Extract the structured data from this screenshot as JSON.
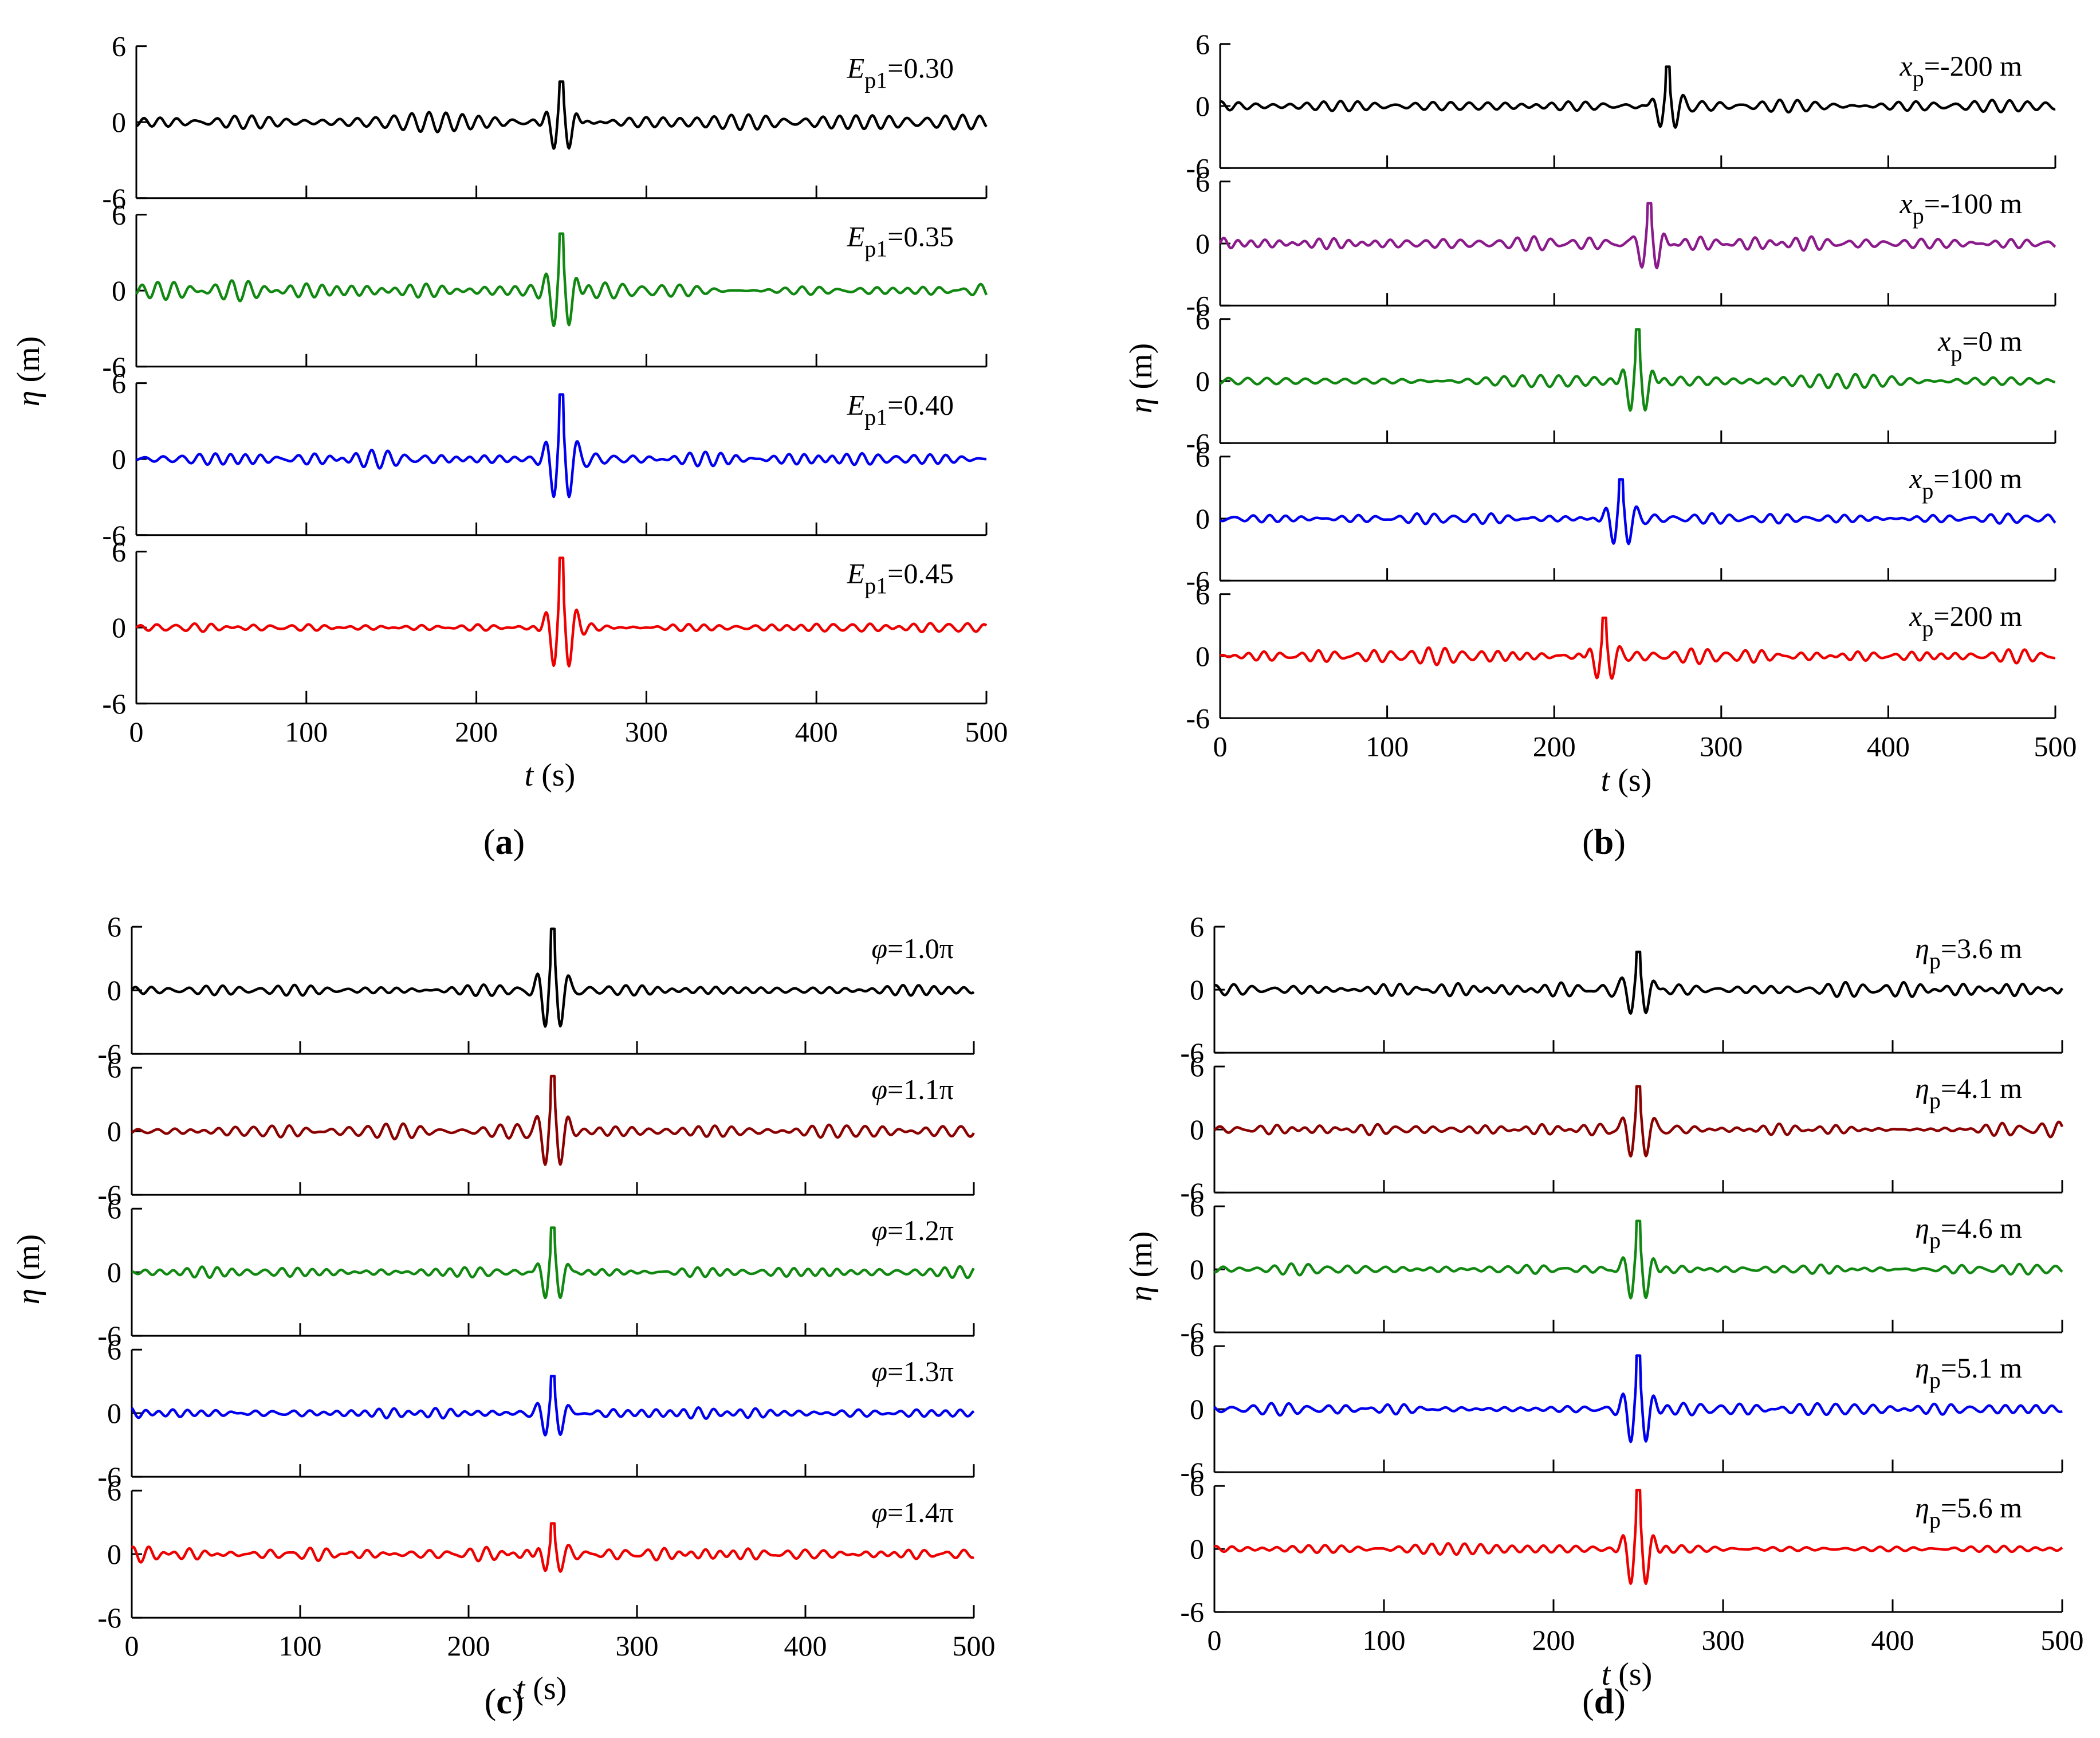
{
  "figure": {
    "panels": [
      {
        "id": "a",
        "label": "(a)",
        "ylabel": "η (m)",
        "xlabel": "t (s)",
        "x_ticks": [
          "0",
          "100",
          "200",
          "300",
          "400",
          "500"
        ],
        "y_ticks": [
          "6",
          "0",
          "-6"
        ]
      },
      {
        "id": "b",
        "label": "(b)",
        "ylabel": "η (m)",
        "xlabel": "t (s)",
        "x_ticks": [
          "0",
          "100",
          "200",
          "300",
          "400",
          "500"
        ],
        "y_ticks": [
          "6",
          "0",
          "-6"
        ]
      },
      {
        "id": "c",
        "label": "(c)",
        "ylabel": "η (m)",
        "xlabel": "t (s)",
        "x_ticks": [
          "0",
          "100",
          "200",
          "300",
          "400",
          "500"
        ],
        "y_ticks": [
          "6",
          "0",
          "-6"
        ]
      },
      {
        "id": "d",
        "label": "(d)",
        "ylabel": "η (m)",
        "xlabel": "t (s)",
        "x_ticks": [
          "0",
          "100",
          "200",
          "300",
          "400",
          "500"
        ],
        "y_ticks": [
          "6",
          "0",
          "-6"
        ]
      }
    ]
  },
  "chart_data": [
    {
      "panel": "a",
      "type": "line",
      "xlabel": "t (s)",
      "ylabel": "η (m)",
      "xlim": [
        0,
        500
      ],
      "ylim": [
        -6,
        6
      ],
      "series": [
        {
          "name": "E_p1=0.30",
          "param_symbol": "E",
          "param_sub": "p1",
          "param_value": "=0.30",
          "color": "#000000",
          "peak_t": 250,
          "peak": 3.2,
          "trough": -2.6,
          "background_amp": 0.6,
          "seed": 11
        },
        {
          "name": "E_p1=0.35",
          "param_symbol": "E",
          "param_sub": "p1",
          "param_value": "=0.35",
          "color": "#118811",
          "peak_t": 250,
          "peak": 4.5,
          "trough": -2.9,
          "background_amp": 0.6,
          "seed": 12
        },
        {
          "name": "E_p1=0.40",
          "param_symbol": "E",
          "param_sub": "p1",
          "param_value": "=0.40",
          "color": "#0000ee",
          "peak_t": 250,
          "peak": 5.1,
          "trough": -2.7,
          "background_amp": 0.5,
          "seed": 13
        },
        {
          "name": "E_p1=0.45",
          "param_symbol": "E",
          "param_sub": "p1",
          "param_value": "=0.45",
          "color": "#ee0000",
          "peak_t": 250,
          "peak": 5.5,
          "trough": -2.6,
          "background_amp": 0.3,
          "seed": 14
        }
      ]
    },
    {
      "panel": "b",
      "type": "line",
      "xlabel": "t (s)",
      "ylabel": "η (m)",
      "xlim": [
        0,
        500
      ],
      "ylim": [
        -6,
        6
      ],
      "series": [
        {
          "name": "x_p=-200 m",
          "param_symbol": "x",
          "param_sub": "p",
          "param_value": "=-200 m",
          "color": "#000000",
          "peak_t": 268,
          "peak": 3.8,
          "trough": -1.6,
          "background_amp": 0.5,
          "seed": 21
        },
        {
          "name": "x_p=-100 m",
          "param_symbol": "x",
          "param_sub": "p",
          "param_value": "=-100 m",
          "color": "#8b1a8b",
          "peak_t": 257,
          "peak": 3.9,
          "trough": -2.6,
          "background_amp": 0.6,
          "seed": 22
        },
        {
          "name": "x_p=0 m",
          "param_symbol": "x",
          "param_sub": "p",
          "param_value": "=0 m",
          "color": "#118811",
          "peak_t": 250,
          "peak": 5.0,
          "trough": -2.8,
          "background_amp": 0.5,
          "seed": 23
        },
        {
          "name": "x_p=100 m",
          "param_symbol": "x",
          "param_sub": "p",
          "param_value": "=100 m",
          "color": "#0000ee",
          "peak_t": 240,
          "peak": 3.8,
          "trough": -2.6,
          "background_amp": 0.5,
          "seed": 24
        },
        {
          "name": "x_p=200 m",
          "param_symbol": "x",
          "param_sub": "p",
          "param_value": "=200 m",
          "color": "#ee0000",
          "peak_t": 230,
          "peak": 3.7,
          "trough": -2.2,
          "background_amp": 0.6,
          "seed": 25
        }
      ]
    },
    {
      "panel": "c",
      "type": "line",
      "xlabel": "t (s)",
      "ylabel": "η (m)",
      "xlim": [
        0,
        500
      ],
      "ylim": [
        -6,
        6
      ],
      "series": [
        {
          "name": "φ=1.0π",
          "param_symbol": "φ",
          "param_sub": "",
          "param_value": "=1.0π",
          "color": "#000000",
          "peak_t": 250,
          "peak": 5.8,
          "trough": -3.2,
          "background_amp": 0.5,
          "seed": 31
        },
        {
          "name": "φ=1.1π",
          "param_symbol": "φ",
          "param_sub": "",
          "param_value": "=1.1π",
          "color": "#8b0000",
          "peak_t": 250,
          "peak": 5.2,
          "trough": -3.1,
          "background_amp": 0.5,
          "seed": 32
        },
        {
          "name": "φ=1.2π",
          "param_symbol": "φ",
          "param_sub": "",
          "param_value": "=1.2π",
          "color": "#118811",
          "peak_t": 250,
          "peak": 4.2,
          "trough": -2.6,
          "background_amp": 0.5,
          "seed": 33
        },
        {
          "name": "φ=1.3π",
          "param_symbol": "φ",
          "param_sub": "",
          "param_value": "=1.3π",
          "color": "#0000ee",
          "peak_t": 250,
          "peak": 3.5,
          "trough": -2.0,
          "background_amp": 0.4,
          "seed": 34
        },
        {
          "name": "φ=1.4π",
          "param_symbol": "φ",
          "param_sub": "",
          "param_value": "=1.4π",
          "color": "#ee0000",
          "peak_t": 250,
          "peak": 2.9,
          "trough": -1.4,
          "background_amp": 0.5,
          "seed": 35
        }
      ]
    },
    {
      "panel": "d",
      "type": "line",
      "xlabel": "t (s)",
      "ylabel": "η (m)",
      "xlim": [
        0,
        500
      ],
      "ylim": [
        -6,
        6
      ],
      "series": [
        {
          "name": "η_p=3.6 m",
          "param_symbol": "η",
          "param_sub": "p",
          "param_value": "=3.6 m",
          "color": "#000000",
          "peak_t": 250,
          "peak": 3.6,
          "trough": -2.2,
          "background_amp": 0.6,
          "seed": 41
        },
        {
          "name": "η_p=4.1 m",
          "param_symbol": "η",
          "param_sub": "p",
          "param_value": "=4.1 m",
          "color": "#8b0000",
          "peak_t": 250,
          "peak": 4.1,
          "trough": -2.5,
          "background_amp": 0.5,
          "seed": 42
        },
        {
          "name": "η_p=4.6 m",
          "param_symbol": "η",
          "param_sub": "p",
          "param_value": "=4.6 m",
          "color": "#118811",
          "peak_t": 250,
          "peak": 4.6,
          "trough": -2.8,
          "background_amp": 0.5,
          "seed": 43
        },
        {
          "name": "η_p=5.1 m",
          "param_symbol": "η",
          "param_sub": "p",
          "param_value": "=5.1 m",
          "color": "#0000ee",
          "peak_t": 250,
          "peak": 5.1,
          "trough": -3.1,
          "background_amp": 0.5,
          "seed": 44
        },
        {
          "name": "η_p=5.6 m",
          "param_symbol": "η",
          "param_sub": "p",
          "param_value": "=5.6 m",
          "color": "#ee0000",
          "peak_t": 250,
          "peak": 5.6,
          "trough": -3.4,
          "background_amp": 0.4,
          "seed": 45
        }
      ]
    }
  ]
}
